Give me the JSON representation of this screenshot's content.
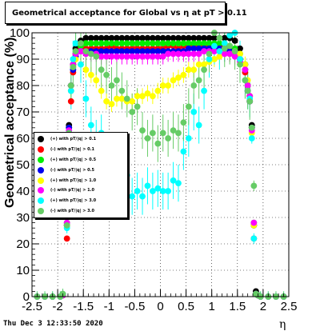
{
  "title": "Geometrical acceptance for Global vs   η at pT > 0.11",
  "footer": {
    "timestamp": "Thu Dec  3 12:33:50 2020"
  },
  "chart_data": {
    "type": "scatter",
    "title": "Geometrical acceptance for Global vs   η at pT > 0.11",
    "xlabel": "η",
    "ylabel": "Geometrical acceptance (%)",
    "xlim": [
      -2.5,
      2.5
    ],
    "ylim": [
      0,
      100
    ],
    "x_ticks": [
      "-2.5",
      "-2",
      "-1.5",
      "-1",
      "-0.5",
      "0",
      "0.5",
      "1",
      "1.5",
      "2",
      "2.5"
    ],
    "y_ticks": [
      "0",
      "10",
      "20",
      "30",
      "40",
      "50",
      "60",
      "70",
      "80",
      "90",
      "100"
    ],
    "grid": true,
    "legend_position": "left-middle",
    "series": [
      {
        "name": "(+) with pT/|q| > 0.1",
        "color": "#000000",
        "x": [
          -2.4,
          -2.25,
          -2.1,
          -1.95,
          -1.9,
          -1.82,
          -1.78,
          -1.74,
          -1.7,
          -1.65,
          -1.55,
          -1.45,
          -1.35,
          -1.25,
          -1.15,
          -1.05,
          -0.95,
          -0.85,
          -0.75,
          -0.65,
          -0.55,
          -0.45,
          -0.35,
          -0.25,
          -0.15,
          -0.05,
          0.05,
          0.15,
          0.25,
          0.35,
          0.45,
          0.55,
          0.65,
          0.75,
          0.85,
          0.95,
          1.05,
          1.15,
          1.25,
          1.35,
          1.45,
          1.55,
          1.65,
          1.7,
          1.74,
          1.78,
          1.82,
          1.86,
          1.9,
          1.95,
          2.1,
          2.25,
          2.4
        ],
        "y": [
          0,
          0,
          0,
          0,
          0.5,
          27,
          65,
          80,
          88,
          94,
          97,
          98,
          98,
          98,
          98,
          98,
          98,
          98,
          98,
          98,
          98,
          98,
          98,
          98,
          98,
          98,
          98,
          98,
          98,
          98,
          98,
          98,
          98,
          98,
          98,
          98,
          98,
          98,
          98,
          98,
          97,
          94,
          88,
          80,
          76,
          65,
          27,
          2,
          0.5,
          0,
          0,
          0,
          0
        ]
      },
      {
        "name": "(-) with pT/|q| > 0.1",
        "color": "#ff0000",
        "x": [
          -2.4,
          -2.25,
          -2.1,
          -1.95,
          -1.9,
          -1.82,
          -1.78,
          -1.74,
          -1.7,
          -1.65,
          -1.55,
          -1.45,
          -1.35,
          -1.25,
          -1.15,
          -1.05,
          -0.95,
          -0.85,
          -0.75,
          -0.65,
          -0.55,
          -0.45,
          -0.35,
          -0.25,
          -0.15,
          -0.05,
          0.05,
          0.15,
          0.25,
          0.35,
          0.45,
          0.55,
          0.65,
          0.75,
          0.85,
          0.95,
          1.05,
          1.15,
          1.25,
          1.35,
          1.45,
          1.55,
          1.65,
          1.7,
          1.74,
          1.78,
          1.82,
          1.86,
          1.9,
          1.95,
          2.1,
          2.25,
          2.4
        ],
        "y": [
          0,
          0,
          0,
          0,
          1,
          22,
          64,
          74,
          85,
          92,
          94,
          94,
          94,
          94,
          94,
          94,
          95,
          94,
          94,
          94,
          94,
          94,
          94,
          94,
          94,
          94,
          94,
          95,
          95,
          94,
          95,
          95,
          95,
          95,
          95,
          95,
          95,
          95,
          95,
          94,
          93,
          90,
          85,
          78,
          74,
          64,
          22,
          1,
          0.5,
          0,
          0,
          0,
          0
        ]
      },
      {
        "name": "(+) with pT/|q| > 0.5",
        "color": "#00ee00",
        "x": [
          -2.4,
          -2.25,
          -2.1,
          -1.95,
          -1.9,
          -1.82,
          -1.78,
          -1.74,
          -1.7,
          -1.65,
          -1.55,
          -1.45,
          -1.35,
          -1.25,
          -1.15,
          -1.05,
          -0.95,
          -0.85,
          -0.75,
          -0.65,
          -0.55,
          -0.45,
          -0.35,
          -0.25,
          -0.15,
          -0.05,
          0.05,
          0.15,
          0.25,
          0.35,
          0.45,
          0.55,
          0.65,
          0.75,
          0.85,
          0.95,
          1.05,
          1.15,
          1.25,
          1.35,
          1.45,
          1.55,
          1.65,
          1.7,
          1.74,
          1.78,
          1.82,
          1.86,
          1.9,
          1.95,
          2.1,
          2.25,
          2.4
        ],
        "y": [
          0,
          0,
          0,
          0,
          0.5,
          28,
          64,
          80,
          88,
          92,
          95,
          96,
          96,
          96,
          96,
          96,
          96,
          96,
          96,
          96,
          96,
          96,
          96,
          96,
          96,
          96,
          96,
          96,
          96,
          96,
          96,
          96,
          96,
          96,
          96,
          96,
          96,
          96,
          96,
          95,
          94,
          92,
          88,
          80,
          76,
          64,
          28,
          1,
          0.5,
          0,
          0,
          0,
          0
        ]
      },
      {
        "name": "(-) with pT/|q| > 0.5",
        "color": "#0000ee",
        "x": [
          -2.4,
          -2.25,
          -2.1,
          -1.95,
          -1.9,
          -1.82,
          -1.78,
          -1.74,
          -1.7,
          -1.65,
          -1.55,
          -1.45,
          -1.35,
          -1.25,
          -1.15,
          -1.05,
          -0.95,
          -0.85,
          -0.75,
          -0.65,
          -0.55,
          -0.45,
          -0.35,
          -0.25,
          -0.15,
          -0.05,
          0.05,
          0.15,
          0.25,
          0.35,
          0.45,
          0.55,
          0.65,
          0.75,
          0.85,
          0.95,
          1.05,
          1.15,
          1.25,
          1.35,
          1.45,
          1.55,
          1.65,
          1.7,
          1.74,
          1.78,
          1.82,
          1.86,
          1.9,
          1.95,
          2.1,
          2.25,
          2.4
        ],
        "y": [
          0,
          0,
          0,
          0,
          0.5,
          27,
          64,
          78,
          86,
          91,
          93,
          93,
          93,
          93,
          93,
          93,
          93,
          93,
          93,
          93,
          93,
          93,
          93,
          93,
          93,
          93,
          93,
          93,
          93,
          93,
          93,
          94,
          94,
          94,
          94,
          94,
          94,
          94,
          94,
          93,
          92,
          90,
          86,
          78,
          74,
          64,
          27,
          1,
          0.5,
          0,
          0,
          0,
          0
        ]
      },
      {
        "name": "(+) with pT/|q| > 1.0",
        "color": "#ffff00",
        "x": [
          -2.4,
          -2.25,
          -2.1,
          -1.95,
          -1.9,
          -1.82,
          -1.78,
          -1.74,
          -1.7,
          -1.65,
          -1.55,
          -1.45,
          -1.35,
          -1.25,
          -1.15,
          -1.05,
          -0.95,
          -0.85,
          -0.75,
          -0.65,
          -0.55,
          -0.45,
          -0.35,
          -0.25,
          -0.15,
          -0.05,
          0.05,
          0.15,
          0.25,
          0.35,
          0.45,
          0.55,
          0.65,
          0.75,
          0.85,
          0.95,
          1.05,
          1.15,
          1.25,
          1.35,
          1.45,
          1.55,
          1.65,
          1.7,
          1.74,
          1.78,
          1.82,
          1.86,
          1.9,
          1.95,
          2.1,
          2.25,
          2.4
        ],
        "y": [
          0,
          0,
          0,
          0,
          0.5,
          27,
          62,
          78,
          87,
          90,
          88,
          86,
          84,
          82,
          78,
          74,
          73,
          75,
          75,
          74,
          74,
          76,
          76,
          77,
          76,
          78,
          80,
          80,
          82,
          83,
          84,
          86,
          86,
          88,
          88,
          89,
          90,
          91,
          92,
          92,
          93,
          92,
          88,
          82,
          76,
          62,
          27,
          1,
          0.5,
          0,
          0,
          0,
          0
        ]
      },
      {
        "name": "(-) with pT/|q| > 1.0",
        "color": "#ff00ff",
        "x": [
          -2.4,
          -2.25,
          -2.1,
          -1.95,
          -1.9,
          -1.82,
          -1.78,
          -1.74,
          -1.7,
          -1.65,
          -1.55,
          -1.45,
          -1.35,
          -1.25,
          -1.15,
          -1.05,
          -0.95,
          -0.85,
          -0.75,
          -0.65,
          -0.55,
          -0.45,
          -0.35,
          -0.25,
          -0.15,
          -0.05,
          0.05,
          0.15,
          0.25,
          0.35,
          0.45,
          0.55,
          0.65,
          0.75,
          0.85,
          0.95,
          1.05,
          1.15,
          1.25,
          1.35,
          1.45,
          1.55,
          1.65,
          1.7,
          1.74,
          1.78,
          1.82,
          1.86,
          1.9,
          1.95,
          2.1,
          2.25,
          2.4
        ],
        "y": [
          0,
          0,
          0,
          0,
          0.5,
          28,
          63,
          80,
          88,
          92,
          93,
          92,
          92,
          92,
          91,
          91,
          91,
          91,
          91,
          91,
          91,
          91,
          91,
          91,
          91,
          91,
          91,
          92,
          92,
          92,
          92,
          92,
          92,
          92,
          93,
          93,
          93,
          93,
          92,
          92,
          91,
          89,
          86,
          80,
          76,
          63,
          28,
          1,
          0.5,
          0,
          0,
          0,
          0
        ]
      },
      {
        "name": "(+) with pT/|q| > 3.0",
        "color": "#00ffff",
        "x": [
          -2.4,
          -2.25,
          -2.1,
          -1.95,
          -1.9,
          -1.82,
          -1.78,
          -1.74,
          -1.7,
          -1.65,
          -1.55,
          -1.45,
          -1.35,
          -1.25,
          -1.15,
          -1.05,
          -0.95,
          -0.85,
          -0.75,
          -0.65,
          -0.55,
          -0.45,
          -0.35,
          -0.25,
          -0.15,
          -0.05,
          0.05,
          0.15,
          0.25,
          0.35,
          0.45,
          0.55,
          0.65,
          0.75,
          0.85,
          0.95,
          1.05,
          1.15,
          1.25,
          1.35,
          1.45,
          1.55,
          1.65,
          1.7,
          1.74,
          1.78,
          1.82,
          1.86,
          1.9,
          1.95,
          2.1,
          2.25,
          2.4
        ],
        "y": [
          0,
          0,
          0,
          0,
          1,
          26,
          62,
          78,
          90,
          96,
          88,
          75,
          65,
          60,
          62,
          55,
          50,
          53,
          45,
          46,
          38,
          40,
          38,
          42,
          40,
          41,
          40,
          40,
          44,
          43,
          55,
          60,
          70,
          65,
          78,
          90,
          95,
          93,
          96,
          99,
          100,
          90,
          82,
          78,
          75,
          60,
          22,
          1,
          0.5,
          0,
          0,
          0,
          0
        ]
      },
      {
        "name": "(-) with pT/|q| > 3.0",
        "color": "#66cc66",
        "x": [
          -2.4,
          -2.25,
          -2.1,
          -1.95,
          -1.9,
          -1.82,
          -1.78,
          -1.74,
          -1.7,
          -1.65,
          -1.55,
          -1.45,
          -1.35,
          -1.25,
          -1.15,
          -1.05,
          -0.95,
          -0.85,
          -0.75,
          -0.65,
          -0.55,
          -0.45,
          -0.35,
          -0.25,
          -0.15,
          -0.05,
          0.05,
          0.15,
          0.25,
          0.35,
          0.45,
          0.55,
          0.65,
          0.75,
          0.85,
          0.95,
          1.05,
          1.15,
          1.25,
          1.35,
          1.45,
          1.55,
          1.65,
          1.7,
          1.74,
          1.78,
          1.82,
          1.86,
          1.9,
          1.95,
          2.1,
          2.25,
          2.4
        ],
        "y": [
          0,
          0,
          0,
          0,
          1,
          27,
          62,
          80,
          87,
          93,
          96,
          93,
          92,
          91,
          86,
          84,
          80,
          82,
          78,
          75,
          70,
          72,
          63,
          60,
          62,
          58,
          62,
          60,
          63,
          62,
          66,
          72,
          80,
          82,
          86,
          92,
          100,
          98,
          94,
          95,
          93,
          88,
          82,
          78,
          74,
          64,
          42,
          1,
          0.5,
          0,
          0,
          0,
          0
        ]
      }
    ]
  }
}
